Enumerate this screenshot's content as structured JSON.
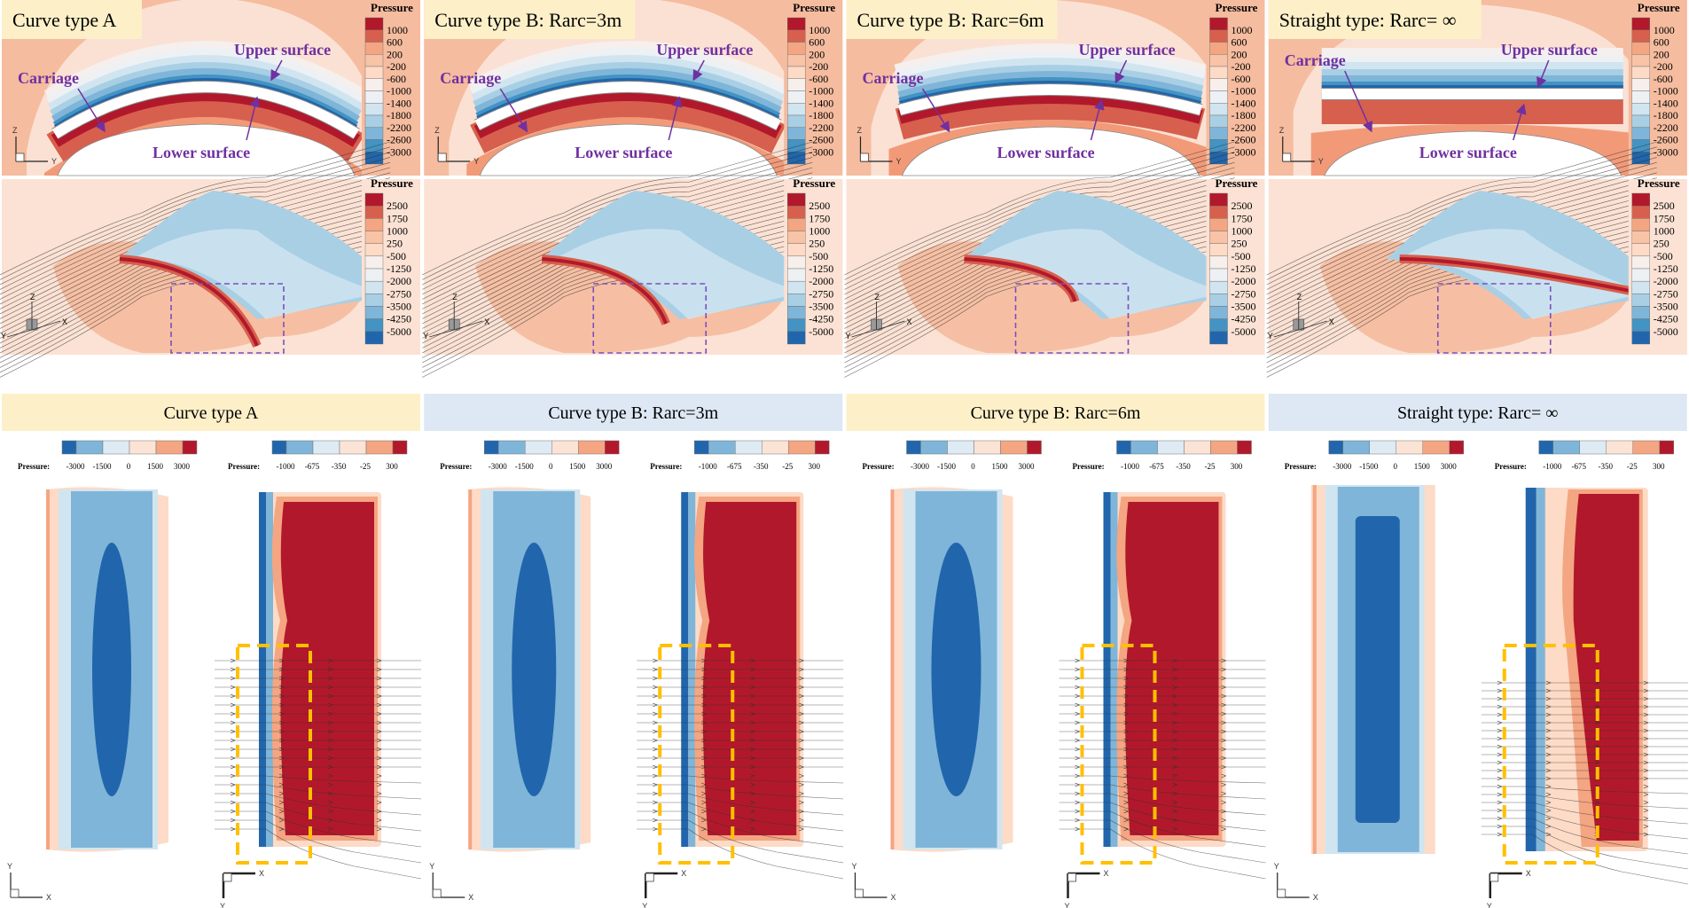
{
  "colors": {
    "purple_label": "#7030a0",
    "dashed_box_top": "#7a4fc0",
    "dashed_box_bottom": "#ffc000",
    "title_yellow": "#fdf0c8",
    "title_blue": "#dde8f4",
    "scale12": [
      "#b2182b",
      "#d6604d",
      "#f4a582",
      "#f8c3a6",
      "#fddbc7",
      "#f7efec",
      "#eef1f4",
      "#d1e5f0",
      "#a9cfe5",
      "#7fb5d8",
      "#4393c3",
      "#2166ac"
    ],
    "scale6": [
      "#2166ac",
      "#7fb5d8",
      "#deebf4",
      "#fbe3d6",
      "#f4a582",
      "#b2182b"
    ]
  },
  "cases": [
    {
      "title": "Curve type A",
      "band_title": "Curve type A"
    },
    {
      "title": "Curve type B: Rarc=3m",
      "band_title": "Curve type B: Rarc=3m"
    },
    {
      "title": "Curve type B: Rarc=6m",
      "band_title": "Curve type B: Rarc=6m"
    },
    {
      "title": "Straight type: Rarc= ∞",
      "band_title": "Straight type: Rarc= ∞"
    }
  ],
  "labels": {
    "carriage": "Carriage",
    "upper": "Upper surface",
    "lower": "Lower surface"
  },
  "legend_top": {
    "title": "Pressure",
    "values": [
      "1000",
      "600",
      "200",
      "-200",
      "-600",
      "-1000",
      "-1400",
      "-1800",
      "-2200",
      "-2600",
      "-3000"
    ]
  },
  "legend_mid": {
    "title": "Pressure",
    "values": [
      "2500",
      "1750",
      "1000",
      "250",
      "-500",
      "-1250",
      "-2000",
      "-2750",
      "-3500",
      "-4250",
      "-5000"
    ]
  },
  "legend_bottom_upper": {
    "title": "Pressure:",
    "values": [
      "-3000",
      "-1500",
      "0",
      "1500",
      "3000"
    ]
  },
  "legend_bottom_lower": {
    "title": "Pressure:",
    "values": [
      "-1000",
      "-675",
      "-350",
      "-25",
      "300"
    ]
  },
  "axes": {
    "x": "X",
    "y": "Y",
    "z": "Z"
  }
}
